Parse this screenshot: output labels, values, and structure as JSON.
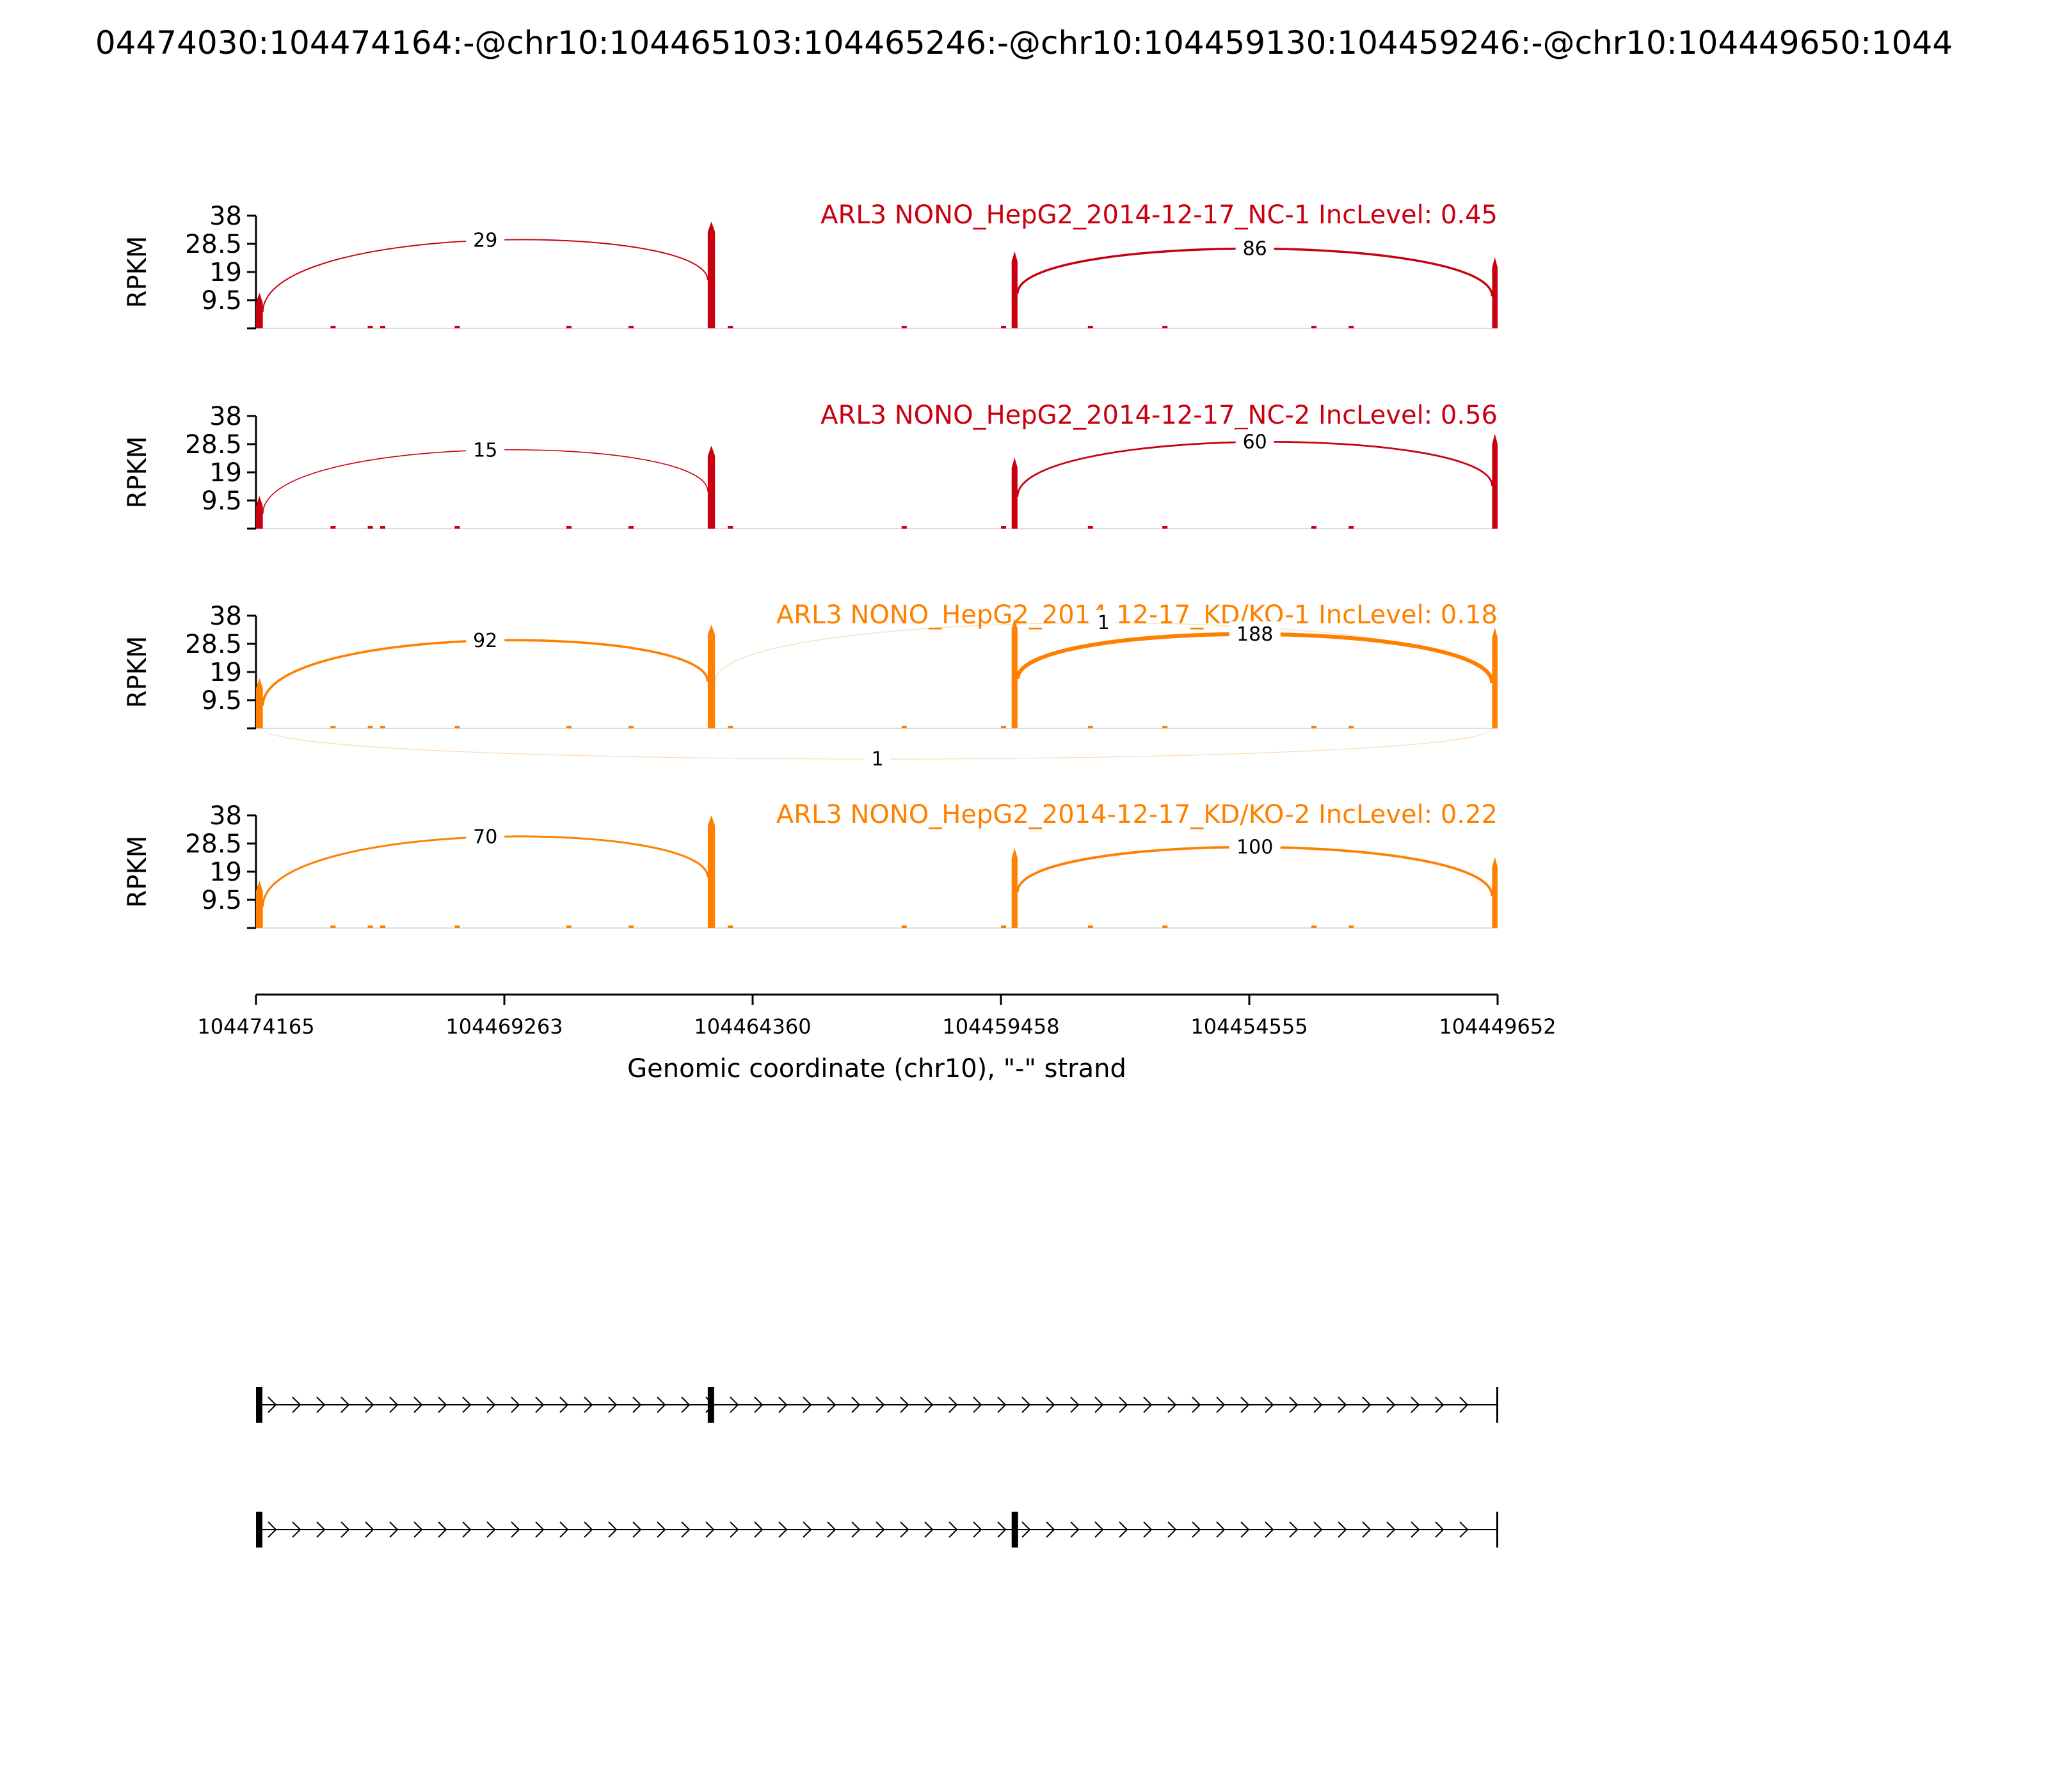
{
  "figure": {
    "title": "04474030:104474164:-@chr10:104465103:104465246:-@chr10:104459130:104459246:-@chr10:104449650:1044"
  },
  "colors": {
    "nc": "#c8000f",
    "kd": "#ff8000",
    "axis": "#000000"
  },
  "chart_data": {
    "type": "sashimi",
    "ylabel": "RPKM",
    "yticks": [
      "9.5",
      "19",
      "28.5",
      "38"
    ],
    "ylim": [
      0,
      38
    ],
    "xlim": [
      104474165,
      104449652
    ],
    "xlabel": "Genomic coordinate (chr10), \"-\" strand",
    "xticks": [
      "104474165",
      "104469263",
      "104464360",
      "104459458",
      "104454555",
      "104449652"
    ],
    "exons": [
      {
        "start": 104474165,
        "end": 104474030,
        "name": "exon1"
      },
      {
        "start": 104465246,
        "end": 104465103,
        "name": "exon2"
      },
      {
        "start": 104459246,
        "end": 104459130,
        "name": "exon3"
      },
      {
        "start": 104449760,
        "end": 104449652,
        "name": "exon4"
      }
    ],
    "panels": [
      {
        "label": "ARL3 NONO_HepG2_2014-12-17_NC-1 IncLevel: 0.45",
        "group": "nc",
        "exon_peaks": [
          12,
          36,
          26,
          24
        ],
        "junctions": [
          {
            "from": "exon1",
            "to": "exon2",
            "count": 29,
            "side": "above"
          },
          {
            "from": "exon3",
            "to": "exon4",
            "count": 86,
            "side": "above"
          }
        ]
      },
      {
        "label": "ARL3 NONO_HepG2_2014-12-17_NC-2 IncLevel: 0.56",
        "group": "nc",
        "exon_peaks": [
          11,
          28,
          24,
          32
        ],
        "junctions": [
          {
            "from": "exon1",
            "to": "exon2",
            "count": 15,
            "side": "above"
          },
          {
            "from": "exon3",
            "to": "exon4",
            "count": 60,
            "side": "above"
          }
        ]
      },
      {
        "label": "ARL3 NONO_HepG2_2014-12-17_KD/KO-1 IncLevel: 0.18",
        "group": "kd",
        "exon_peaks": [
          17,
          35,
          37,
          34
        ],
        "junctions": [
          {
            "from": "exon1",
            "to": "exon2",
            "count": 92,
            "side": "above"
          },
          {
            "from": "exon2",
            "to": "exon4",
            "count": 1,
            "side": "above"
          },
          {
            "from": "exon3",
            "to": "exon4",
            "count": 188,
            "side": "above"
          },
          {
            "from": "exon1",
            "to": "exon4",
            "count": 1,
            "side": "below"
          }
        ]
      },
      {
        "label": "ARL3 NONO_HepG2_2014-12-17_KD/KO-2 IncLevel: 0.22",
        "group": "kd",
        "exon_peaks": [
          16,
          38,
          27,
          24
        ],
        "junctions": [
          {
            "from": "exon1",
            "to": "exon2",
            "count": 70,
            "side": "above"
          },
          {
            "from": "exon3",
            "to": "exon4",
            "count": 100,
            "side": "above"
          }
        ]
      }
    ],
    "isoforms": [
      {
        "exons": [
          "exon1",
          "exon2",
          "exon4"
        ]
      },
      {
        "exons": [
          "exon1",
          "exon3",
          "exon4"
        ]
      }
    ]
  }
}
